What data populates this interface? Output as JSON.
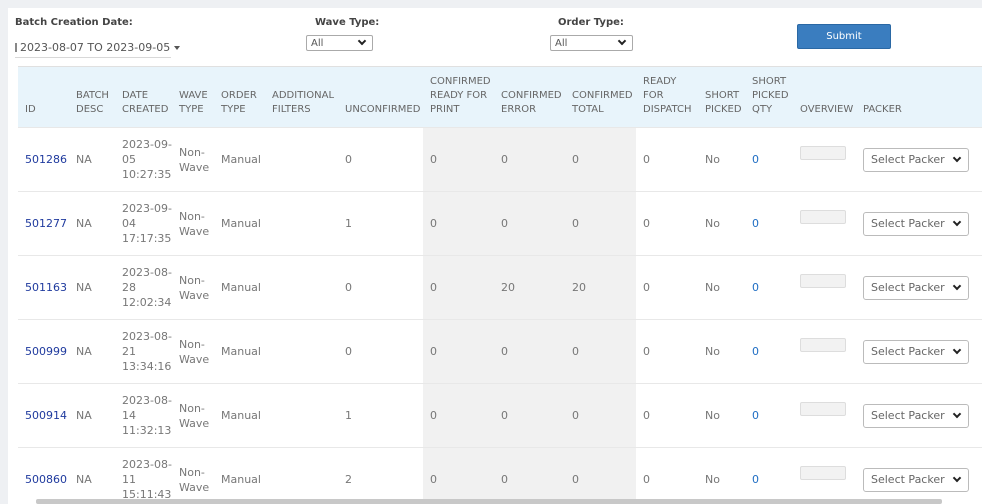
{
  "filters": {
    "batch_date_label": "Batch Creation Date:",
    "batch_date_value": "2023-08-07 TO 2023-09-05",
    "wave_type_label": "Wave Type:",
    "wave_type_value": "All",
    "order_type_label": "Order Type:",
    "order_type_value": "All",
    "submit_label": "Submit"
  },
  "table": {
    "headers": [
      "ID",
      "BATCH DESC",
      "DATE CREATED",
      "WAVE TYPE",
      "ORDER TYPE",
      "ADDITIONAL FILTERS",
      "UNCONFIRMED",
      "CONFIRMED READY FOR PRINT",
      "CONFIRMED ERROR",
      "CONFIRMED TOTAL",
      "READY FOR DISPATCH",
      "SHORT PICKED",
      "SHORT PICKED QTY",
      "OVERVIEW",
      "PACKER"
    ],
    "rows": [
      {
        "id": "501286",
        "desc": "NA",
        "date": "2023-09-05 10:27:35",
        "wave": "Non-Wave",
        "order": "Manual",
        "filters": "",
        "unconfirmed": "0",
        "ready_print": "0",
        "error": "0",
        "total": "0",
        "dispatch": "0",
        "short": "No",
        "short_qty": "0",
        "packer": "Select Packer"
      },
      {
        "id": "501277",
        "desc": "NA",
        "date": "2023-09-04 17:17:35",
        "wave": "Non-Wave",
        "order": "Manual",
        "filters": "",
        "unconfirmed": "1",
        "ready_print": "0",
        "error": "0",
        "total": "0",
        "dispatch": "0",
        "short": "No",
        "short_qty": "0",
        "packer": "Select Packer"
      },
      {
        "id": "501163",
        "desc": "NA",
        "date": "2023-08-28 12:02:34",
        "wave": "Non-Wave",
        "order": "Manual",
        "filters": "",
        "unconfirmed": "0",
        "ready_print": "0",
        "error": "20",
        "total": "20",
        "dispatch": "0",
        "short": "No",
        "short_qty": "0",
        "packer": "Select Packer"
      },
      {
        "id": "500999",
        "desc": "NA",
        "date": "2023-08-21 13:34:16",
        "wave": "Non-Wave",
        "order": "Manual",
        "filters": "",
        "unconfirmed": "0",
        "ready_print": "0",
        "error": "0",
        "total": "0",
        "dispatch": "0",
        "short": "No",
        "short_qty": "0",
        "packer": "Select Packer"
      },
      {
        "id": "500914",
        "desc": "NA",
        "date": "2023-08-14 11:32:13",
        "wave": "Non-Wave",
        "order": "Manual",
        "filters": "",
        "unconfirmed": "1",
        "ready_print": "0",
        "error": "0",
        "total": "0",
        "dispatch": "0",
        "short": "No",
        "short_qty": "0",
        "packer": "Select Packer"
      },
      {
        "id": "500860",
        "desc": "NA",
        "date": "2023-08-11 15:11:43",
        "wave": "Non-Wave",
        "order": "Manual",
        "filters": "",
        "unconfirmed": "2",
        "ready_print": "0",
        "error": "0",
        "total": "0",
        "dispatch": "0",
        "short": "No",
        "short_qty": "0",
        "packer": "Select Packer"
      }
    ]
  }
}
